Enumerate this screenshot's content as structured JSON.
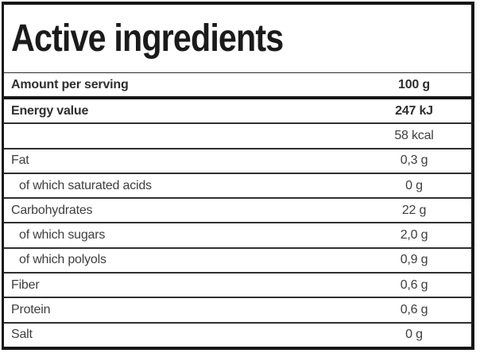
{
  "title": "Active ingredients",
  "table": {
    "header_row": {
      "label": "Amount per serving",
      "value": "100 g"
    },
    "rows": [
      {
        "label": "Energy value",
        "value": "247 kJ"
      },
      {
        "label": "",
        "value": "58 kcal"
      },
      {
        "label": "Fat",
        "value": "0,3 g"
      },
      {
        "label": "of which saturated acids",
        "value": "0 g"
      },
      {
        "label": "Carbohydrates",
        "value": "22 g"
      },
      {
        "label": "of which sugars",
        "value": "2,0 g"
      },
      {
        "label": "of which polyols",
        "value": "0,9 g"
      },
      {
        "label": "Fiber",
        "value": "0,6 g"
      },
      {
        "label": "Protein",
        "value": "0,6 g"
      },
      {
        "label": "Salt",
        "value": "0 g"
      }
    ]
  },
  "colors": {
    "background": "#ffffff",
    "outer_border": "#161616",
    "row_separator": "#303030",
    "title_text": "#1b1b1b",
    "bold_text": "#2e2e2e",
    "body_text": "#3e3e3e"
  }
}
